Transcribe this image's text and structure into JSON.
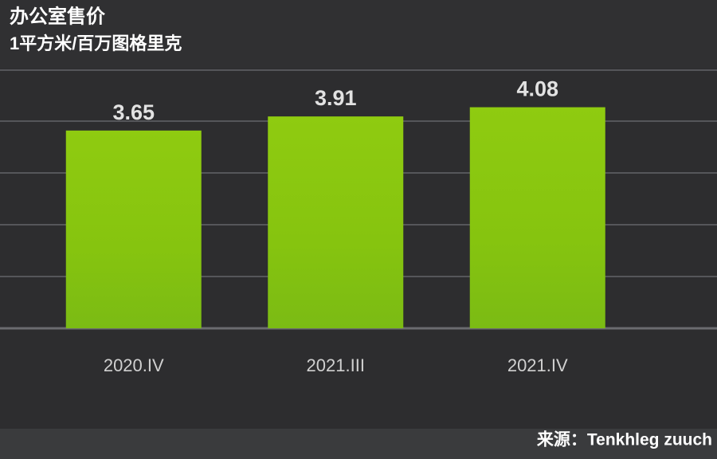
{
  "chart_data": {
    "type": "bar",
    "title": "办公室售价",
    "subtitle": "1平方米/百万图格里克",
    "categories": [
      "2020.IV",
      "2021.III",
      "2021.IV"
    ],
    "values": [
      3.65,
      3.91,
      4.08
    ],
    "color": "#8cc80f",
    "ylim": [
      0,
      5
    ],
    "source": "来源：Tenkhleg zuuch"
  }
}
